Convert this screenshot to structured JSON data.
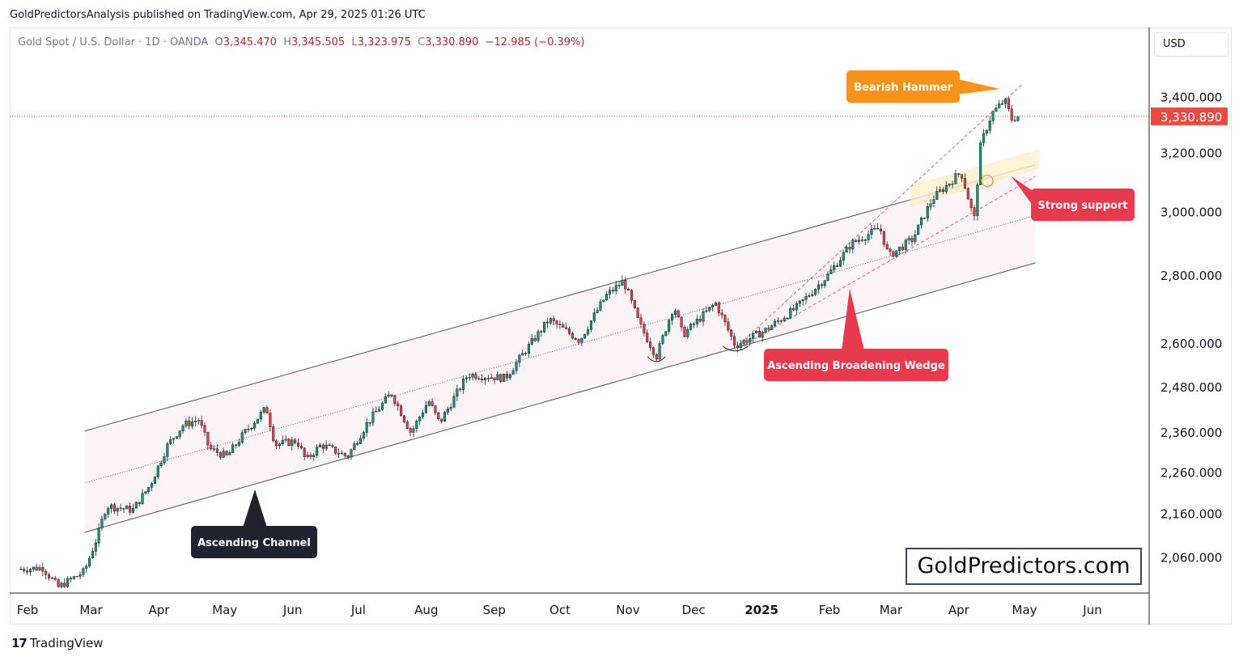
{
  "publisher": "GoldPredictorsAnalysis published on TradingView.com, Apr 29, 2025 01:26 UTC",
  "legend": {
    "symbol": "Gold Spot / U.S. Dollar · 1D · OANDA",
    "open_label": "O",
    "open": "3,345.470",
    "high_label": "H",
    "high": "3,345.505",
    "low_label": "L",
    "low": "3,323.975",
    "close_label": "C",
    "close": "3,330.890",
    "change": "−12.985 (−0.39%)"
  },
  "currency": "USD",
  "last_price_label": "3,330.890",
  "watermark": "GoldPredictors.com",
  "footer_brand": "TradingView",
  "colors": {
    "up": "#089981",
    "down": "#f23645",
    "orange": "#f7931a",
    "red": "#e83a4f",
    "dark": "#1e222d",
    "price_tag": "#e94b44"
  },
  "annotations": {
    "bearish_hammer": "Bearish Hammer",
    "strong_support": "Strong support",
    "ascending_broadening_wedge": "Ascending Broadening Wedge",
    "ascending_channel": "Ascending Channel"
  },
  "chart_data": {
    "type": "candlestick",
    "title": "Gold Spot / U.S. Dollar · 1D · OANDA",
    "y_scale": "log",
    "y_ticks": [
      "3,400.000",
      "3,200.000",
      "3,000.000",
      "2,800.000",
      "2,600.000",
      "2,480.000",
      "2,360.000",
      "2,260.000",
      "2,160.000",
      "2,060.000"
    ],
    "y_tick_values": [
      3400,
      3200,
      3000,
      2800,
      2600,
      2480,
      2360,
      2260,
      2160,
      2060
    ],
    "x_ticks": [
      "Feb",
      "Mar",
      "Apr",
      "May",
      "Jun",
      "Jul",
      "Aug",
      "Sep",
      "Oct",
      "Nov",
      "Dec",
      "2025",
      "Feb",
      "Mar",
      "Apr",
      "May",
      "Jun"
    ],
    "x_tick_dates": [
      "2024-02-01",
      "2024-03-01",
      "2024-04-01",
      "2024-05-01",
      "2024-06-01",
      "2024-07-01",
      "2024-08-01",
      "2024-09-01",
      "2024-10-01",
      "2024-11-01",
      "2024-12-01",
      "2025-01-01",
      "2025-02-01",
      "2025-03-01",
      "2025-04-01",
      "2025-05-01",
      "2025-06-01"
    ],
    "last_close": 3330.89,
    "path": [
      [
        "2024-01-29",
        2035
      ],
      [
        "2024-02-08",
        2038
      ],
      [
        "2024-02-15",
        1995
      ],
      [
        "2024-02-27",
        2030
      ],
      [
        "2024-03-04",
        2110
      ],
      [
        "2024-03-08",
        2180
      ],
      [
        "2024-03-20",
        2170
      ],
      [
        "2024-03-28",
        2230
      ],
      [
        "2024-04-05",
        2330
      ],
      [
        "2024-04-12",
        2380
      ],
      [
        "2024-04-19",
        2395
      ],
      [
        "2024-04-24",
        2320
      ],
      [
        "2024-05-02",
        2300
      ],
      [
        "2024-05-10",
        2360
      ],
      [
        "2024-05-20",
        2425
      ],
      [
        "2024-05-24",
        2330
      ],
      [
        "2024-06-03",
        2340
      ],
      [
        "2024-06-07",
        2290
      ],
      [
        "2024-06-14",
        2330
      ],
      [
        "2024-06-26",
        2300
      ],
      [
        "2024-07-05",
        2385
      ],
      [
        "2024-07-16",
        2465
      ],
      [
        "2024-07-25",
        2360
      ],
      [
        "2024-08-02",
        2445
      ],
      [
        "2024-08-07",
        2385
      ],
      [
        "2024-08-20",
        2515
      ],
      [
        "2024-09-06",
        2505
      ],
      [
        "2024-09-20",
        2620
      ],
      [
        "2024-09-26",
        2670
      ],
      [
        "2024-10-10",
        2610
      ],
      [
        "2024-10-22",
        2740
      ],
      [
        "2024-10-30",
        2785
      ],
      [
        "2024-11-06",
        2660
      ],
      [
        "2024-11-14",
        2565
      ],
      [
        "2024-11-22",
        2712
      ],
      [
        "2024-11-26",
        2625
      ],
      [
        "2024-12-11",
        2718
      ],
      [
        "2024-12-20",
        2595
      ],
      [
        "2025-01-03",
        2640
      ],
      [
        "2025-01-17",
        2705
      ],
      [
        "2025-01-31",
        2800
      ],
      [
        "2025-02-11",
        2900
      ],
      [
        "2025-02-24",
        2950
      ],
      [
        "2025-02-28",
        2860
      ],
      [
        "2025-03-11",
        2915
      ],
      [
        "2025-03-20",
        3045
      ],
      [
        "2025-04-02",
        3135
      ],
      [
        "2025-04-08",
        2975
      ],
      [
        "2025-04-11",
        3230
      ],
      [
        "2025-04-16",
        3340
      ],
      [
        "2025-04-22",
        3390
      ],
      [
        "2025-04-25",
        3320
      ],
      [
        "2025-04-28",
        3331
      ]
    ]
  }
}
